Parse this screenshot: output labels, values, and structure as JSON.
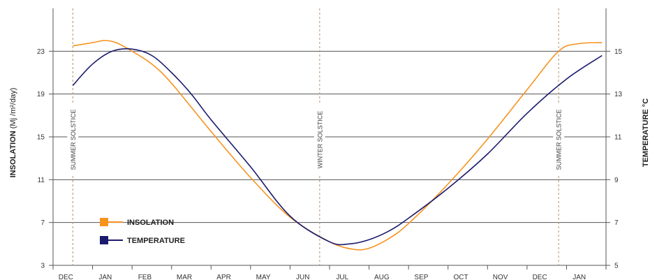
{
  "chart_data": {
    "type": "line",
    "categories": [
      "DEC",
      "JAN",
      "FEB",
      "MAR",
      "APR",
      "MAY",
      "JUN",
      "JUL",
      "AUG",
      "SEP",
      "OCT",
      "NOV",
      "DEC",
      "JAN"
    ],
    "x": [
      -0.5,
      0.0,
      0.3,
      0.6,
      1.0,
      1.5,
      2.0,
      3.0,
      4.0,
      5.0,
      6.0,
      6.6,
      7.0,
      7.5,
      8.0,
      9.0,
      10.0,
      11.0,
      11.8,
      12.3,
      12.9
    ],
    "series": [
      {
        "name": "INSOLATION",
        "axis": "left",
        "color": "#f7931e",
        "x": [
          -0.5,
          0.0,
          0.3,
          0.6,
          1.0,
          1.5,
          2.0,
          3.0,
          4.0,
          5.0,
          6.0,
          6.6,
          7.0,
          7.5,
          8.0,
          9.0,
          10.0,
          11.0,
          11.8,
          12.3,
          12.9
        ],
        "values": [
          23.5,
          23.8,
          24.0,
          23.8,
          23.0,
          21.8,
          20.0,
          15.5,
          11.2,
          7.5,
          5.2,
          4.5,
          4.6,
          5.5,
          6.9,
          10.6,
          14.8,
          19.4,
          23.0,
          23.7,
          23.8
        ]
      },
      {
        "name": "TEMPERATURE",
        "axis": "right",
        "color": "#1a1a6e",
        "x": [
          -0.5,
          0.0,
          0.5,
          1.0,
          1.5,
          2.0,
          2.5,
          3.0,
          4.0,
          5.0,
          6.0,
          6.5,
          7.0,
          7.5,
          8.0,
          9.0,
          10.0,
          11.0,
          12.0,
          12.9
        ],
        "values": [
          13.4,
          14.4,
          15.0,
          15.1,
          14.8,
          14.0,
          13.0,
          11.8,
          9.6,
          7.3,
          6.1,
          6.0,
          6.2,
          6.6,
          7.2,
          8.6,
          10.2,
          12.1,
          13.7,
          14.8
        ]
      }
    ],
    "annotations": [
      {
        "x": -0.5,
        "label": "SUMMER SOLSTICE"
      },
      {
        "x": 5.75,
        "label": "WINTER SOLSTICE"
      },
      {
        "x": 11.8,
        "label": "SUMMER SOLSTICE"
      }
    ],
    "y_left": {
      "label_bold": "INSOLATION",
      "label_rest": " (Mj /m²/day)",
      "ylim": [
        3,
        27
      ],
      "ticks": [
        "3",
        "7",
        "11",
        "15",
        "19",
        "23"
      ]
    },
    "y_right": {
      "label": "TEMPERATURE °C",
      "ylim": [
        5,
        17
      ],
      "ticks": [
        "5",
        "7",
        "9",
        "11",
        "13",
        "15"
      ]
    },
    "xlim": [
      -1.0,
      13.0
    ],
    "legend": {
      "placement": "bottom-left",
      "items": [
        "INSOLATION",
        "TEMPERATURE"
      ]
    },
    "grid": "horizontal"
  }
}
